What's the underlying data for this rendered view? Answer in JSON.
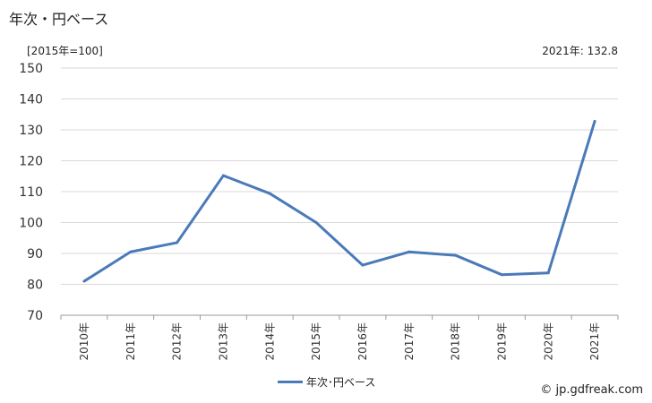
{
  "header": {
    "title": "年次・円ベース",
    "unit": "[2015年=100]",
    "latest": "2021年: 132.8"
  },
  "legend": {
    "label": "年次･円ベース"
  },
  "footer": {
    "source": "© jp.gdfreak.com"
  },
  "colors": {
    "series": "#4a7ab8",
    "grid": "#d9d9d9",
    "axis": "#999999"
  },
  "chart_data": {
    "type": "line",
    "x": [
      "2010年",
      "2011年",
      "2012年",
      "2013年",
      "2014年",
      "2015年",
      "2016年",
      "2017年",
      "2018年",
      "2019年",
      "2020年",
      "2021年"
    ],
    "series": [
      {
        "name": "年次･円ベース",
        "values": [
          81.0,
          90.5,
          93.5,
          115.2,
          109.4,
          100.0,
          86.2,
          90.5,
          89.4,
          83.1,
          83.7,
          132.8
        ]
      }
    ],
    "yticks": [
      70,
      80,
      90,
      100,
      110,
      120,
      130,
      140,
      150
    ],
    "ylim": [
      70,
      150
    ],
    "grid": true,
    "legend_position": "bottom"
  }
}
